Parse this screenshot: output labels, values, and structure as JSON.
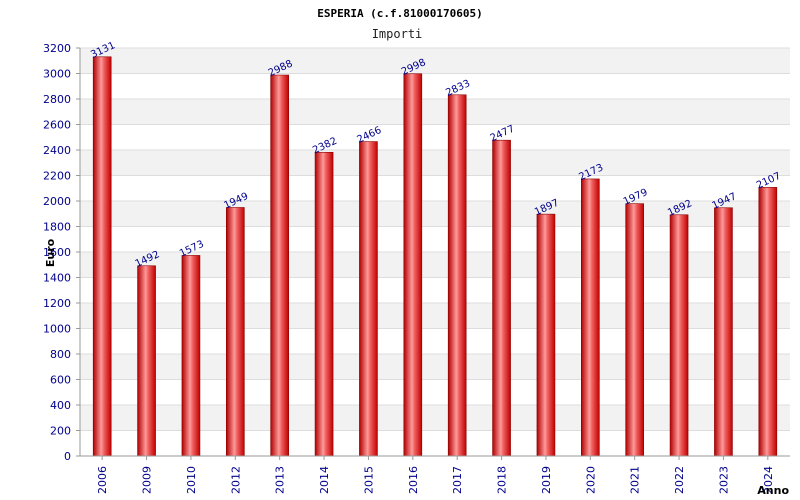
{
  "chart_data": {
    "type": "bar",
    "title": "ESPERIA (c.f.81000170605)",
    "subtitle": "Importi",
    "xlabel": "Anno",
    "ylabel": "Euro",
    "categories": [
      "2006",
      "2009",
      "2010",
      "2012",
      "2013",
      "2014",
      "2015",
      "2016",
      "2017",
      "2018",
      "2019",
      "2020",
      "2021",
      "2022",
      "2023",
      "2024"
    ],
    "values": [
      3131,
      1492,
      1573,
      1949,
      2988,
      2382,
      2466,
      2998,
      2833,
      2477,
      1897,
      2173,
      1979,
      1892,
      1947,
      2107
    ],
    "value_labels": [
      "3131",
      "1492",
      "1573",
      "1949",
      "2988",
      "2382",
      "2466",
      "2998",
      "2833",
      "2477",
      "1897",
      "2173",
      "1979",
      "1892",
      "1947",
      "2107"
    ],
    "ylim": [
      0,
      3200
    ],
    "yticks": [
      0,
      200,
      400,
      600,
      800,
      1000,
      1200,
      1400,
      1600,
      1800,
      2000,
      2200,
      2400,
      2600,
      2800,
      3000,
      3200
    ],
    "ytick_labels": [
      "0",
      "200",
      "400",
      "600",
      "800",
      "1000",
      "1200",
      "1400",
      "1600",
      "1800",
      "2000",
      "2200",
      "2400",
      "2600",
      "2800",
      "3000",
      "3200"
    ],
    "grid": true,
    "colors": {
      "bar_edge": "#8b0000",
      "bar_dark": "#d40000",
      "bar_light": "#ff9a9a",
      "band": "#f2f2f2",
      "grid": "#dddddd",
      "tick_text": "#00008b"
    }
  }
}
